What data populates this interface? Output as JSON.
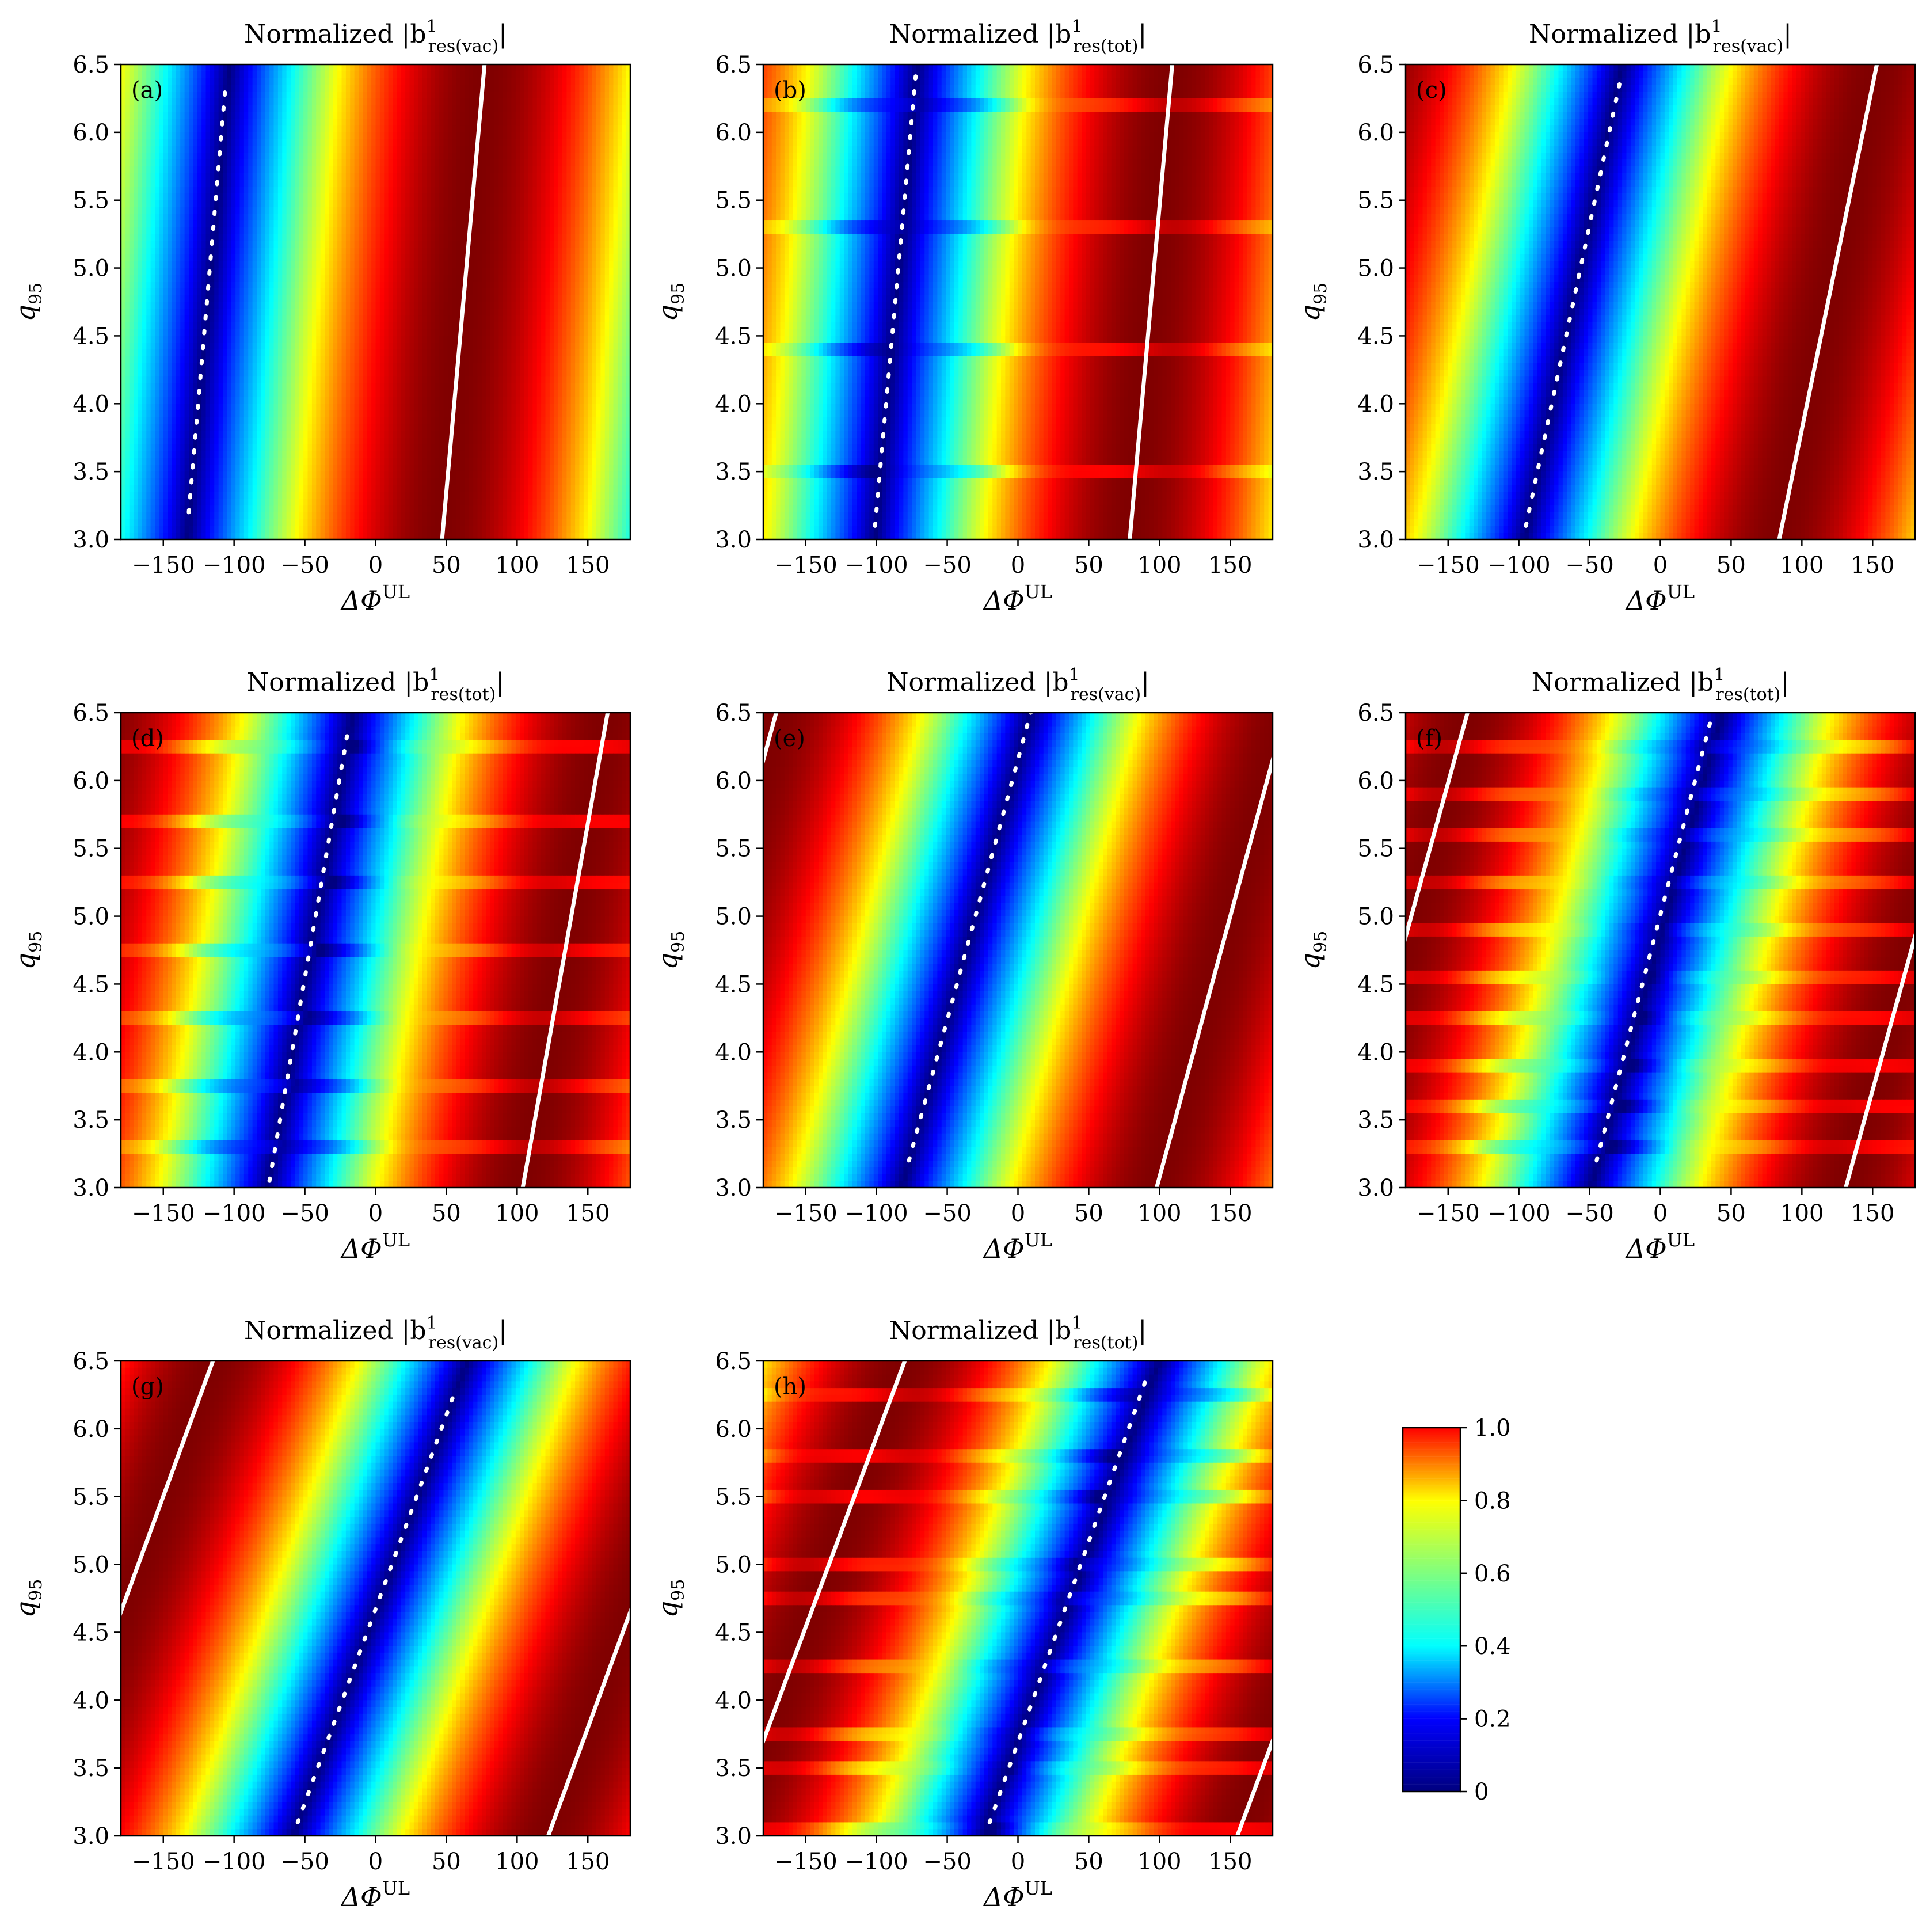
{
  "figure": {
    "x_axis_label": "ΔΦ",
    "x_axis_label_sup": "UL",
    "y_axis_label": "q",
    "y_axis_label_sub": "95",
    "title_prefix": "Normalized |b",
    "title_sup": "1",
    "title_suffix": "|"
  },
  "colormap": {
    "name": "jet",
    "stops": [
      "#00007f",
      "#0000ff",
      "#00ffff",
      "#7fff7f",
      "#ffff00",
      "#ff0000"
    ],
    "ticks": [
      "0",
      "0.2",
      "0.4",
      "0.6",
      "0.8",
      "1.0"
    ],
    "range": [
      0,
      1.0
    ]
  },
  "chart_data": [
    {
      "type": "heatmap",
      "panel": "(a)",
      "title_sub": "res(vac)",
      "x_ticks": [
        "−150",
        "−100",
        "−50",
        "0",
        "50",
        "100",
        "150"
      ],
      "y_ticks": [
        "3.0",
        "3.5",
        "4.0",
        "4.5",
        "5.0",
        "5.5",
        "6.0",
        "6.5"
      ],
      "xlim": [
        -180,
        180
      ],
      "ylim": [
        3.0,
        6.5
      ],
      "min_line": {
        "from": [
          -132,
          3.2
        ],
        "to": [
          -106,
          6.35
        ]
      },
      "max_line": {
        "from": [
          47,
          3.0
        ],
        "to": [
          77,
          6.5
        ]
      },
      "resonant_q": []
    },
    {
      "type": "heatmap",
      "panel": "(b)",
      "title_sub": "res(tot)",
      "x_ticks": [
        "−150",
        "−100",
        "−50",
        "0",
        "50",
        "100",
        "150"
      ],
      "y_ticks": [
        "3.0",
        "3.5",
        "4.0",
        "4.5",
        "5.0",
        "5.5",
        "6.0",
        "6.5"
      ],
      "xlim": [
        -180,
        180
      ],
      "ylim": [
        3.0,
        6.5
      ],
      "min_line": {
        "from": [
          -101,
          3.1
        ],
        "to": [
          -72,
          6.45
        ]
      },
      "max_line": {
        "from": [
          79,
          3.0
        ],
        "to": [
          109,
          6.5
        ]
      },
      "resonant_q": [
        3.5,
        4.4,
        5.3,
        6.2
      ]
    },
    {
      "type": "heatmap",
      "panel": "(c)",
      "title_sub": "res(vac)",
      "x_ticks": [
        "−150",
        "−100",
        "−50",
        "0",
        "50",
        "100",
        "150"
      ],
      "y_ticks": [
        "3.0",
        "3.5",
        "4.0",
        "4.5",
        "5.0",
        "5.5",
        "6.0",
        "6.5"
      ],
      "xlim": [
        -180,
        180
      ],
      "ylim": [
        3.0,
        6.5
      ],
      "min_line": {
        "from": [
          -95,
          3.1
        ],
        "to": [
          -28,
          6.4
        ]
      },
      "max_line": {
        "from": [
          84,
          3.0
        ],
        "to": [
          153,
          6.5
        ]
      },
      "resonant_q": []
    },
    {
      "type": "heatmap",
      "panel": "(d)",
      "title_sub": "res(tot)",
      "x_ticks": [
        "−150",
        "−100",
        "−50",
        "0",
        "50",
        "100",
        "150"
      ],
      "y_ticks": [
        "3.0",
        "3.5",
        "4.0",
        "4.5",
        "5.0",
        "5.5",
        "6.0",
        "6.5"
      ],
      "xlim": [
        -180,
        180
      ],
      "ylim": [
        3.0,
        6.5
      ],
      "min_line": {
        "from": [
          -75,
          3.05
        ],
        "to": [
          -19,
          6.4
        ]
      },
      "max_line": {
        "from": [
          104,
          3.0
        ],
        "to": [
          164,
          6.5
        ]
      },
      "resonant_q": [
        3.3,
        3.75,
        4.25,
        4.75,
        5.25,
        5.7,
        6.25
      ]
    },
    {
      "type": "heatmap",
      "panel": "(e)",
      "title_sub": "res(vac)",
      "x_ticks": [
        "−150",
        "−100",
        "−50",
        "0",
        "50",
        "100",
        "150"
      ],
      "y_ticks": [
        "3.0",
        "3.5",
        "4.0",
        "4.5",
        "5.0",
        "5.5",
        "6.0",
        "6.5"
      ],
      "xlim": [
        -180,
        180
      ],
      "ylim": [
        3.0,
        6.5
      ],
      "min_line": {
        "from": [
          -77,
          3.2
        ],
        "to": [
          9,
          6.5
        ]
      },
      "max_line": {
        "from": [
          98,
          3.0
        ],
        "to": [
          180,
          6.15
        ]
      },
      "resonant_q": []
    },
    {
      "type": "heatmap",
      "panel": "(f)",
      "title_sub": "res(tot)",
      "x_ticks": [
        "−150",
        "−100",
        "−50",
        "0",
        "50",
        "100",
        "150"
      ],
      "y_ticks": [
        "3.0",
        "3.5",
        "4.0",
        "4.5",
        "5.0",
        "5.5",
        "6.0",
        "6.5"
      ],
      "xlim": [
        -180,
        180
      ],
      "ylim": [
        3.0,
        6.5
      ],
      "min_line": {
        "from": [
          -45,
          3.2
        ],
        "to": [
          37,
          6.5
        ]
      },
      "max_line": {
        "from": [
          131,
          3.0
        ],
        "to": [
          180,
          4.85
        ]
      },
      "resonant_q": [
        3.3,
        3.6,
        3.9,
        4.25,
        4.55,
        4.9,
        5.25,
        5.6,
        5.9,
        6.25
      ]
    },
    {
      "type": "heatmap",
      "panel": "(g)",
      "title_sub": "res(vac)",
      "x_ticks": [
        "−150",
        "−100",
        "−50",
        "0",
        "50",
        "100",
        "150"
      ],
      "y_ticks": [
        "3.0",
        "3.5",
        "4.0",
        "4.5",
        "5.0",
        "5.5",
        "6.0",
        "6.5"
      ],
      "xlim": [
        -180,
        180
      ],
      "ylim": [
        3.0,
        6.5
      ],
      "min_line": {
        "from": [
          -55,
          3.1
        ],
        "to": [
          57,
          6.3
        ]
      },
      "max_line": {
        "from": [
          122,
          3.0
        ],
        "to": [
          180,
          4.65
        ]
      },
      "resonant_q": []
    },
    {
      "type": "heatmap",
      "panel": "(h)",
      "title_sub": "res(tot)",
      "x_ticks": [
        "−150",
        "−100",
        "−50",
        "0",
        "50",
        "100",
        "150"
      ],
      "y_ticks": [
        "3.0",
        "3.5",
        "4.0",
        "4.5",
        "5.0",
        "5.5",
        "6.0",
        "6.5"
      ],
      "xlim": [
        -180,
        180
      ],
      "ylim": [
        3.0,
        6.5
      ],
      "min_line": {
        "from": [
          -20,
          3.1
        ],
        "to": [
          90,
          6.35
        ]
      },
      "max_line": {
        "from": [
          155,
          3.0
        ],
        "to": [
          180,
          3.7
        ]
      },
      "resonant_q": [
        3.05,
        3.5,
        3.75,
        4.25,
        4.75,
        5.0,
        5.5,
        5.8,
        6.25
      ]
    }
  ]
}
